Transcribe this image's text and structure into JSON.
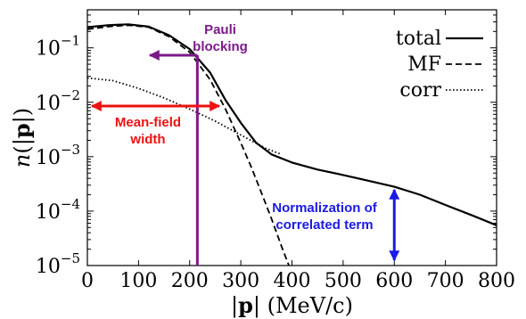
{
  "chart_data": {
    "type": "line",
    "xlabel": "|p| (MeV/c)",
    "ylabel": "n(|p|)",
    "xlim": [
      0,
      800
    ],
    "ylim": [
      1e-05,
      0.5
    ],
    "yscale": "log",
    "x_ticks": [
      "0",
      "100",
      "200",
      "300",
      "400",
      "500",
      "600",
      "700",
      "800"
    ],
    "y_ticks": [
      {
        "base": "10",
        "exp": "−5"
      },
      {
        "base": "10",
        "exp": "−4"
      },
      {
        "base": "10",
        "exp": "−3"
      },
      {
        "base": "10",
        "exp": "−2"
      },
      {
        "base": "10",
        "exp": "−1"
      }
    ],
    "legend": {
      "position": "top-right",
      "entries": [
        {
          "label": "total",
          "style": "solid"
        },
        {
          "label": "MF",
          "style": "dashed"
        },
        {
          "label": "corr",
          "style": "dotted"
        }
      ]
    },
    "series": [
      {
        "name": "total",
        "style": "solid",
        "points": [
          [
            0,
            0.24
          ],
          [
            40,
            0.26
          ],
          [
            80,
            0.27
          ],
          [
            120,
            0.245
          ],
          [
            160,
            0.17
          ],
          [
            200,
            0.095
          ],
          [
            240,
            0.035
          ],
          [
            270,
            0.011
          ],
          [
            300,
            0.0042
          ],
          [
            330,
            0.0018
          ],
          [
            360,
            0.0011
          ],
          [
            400,
            0.00078
          ],
          [
            450,
            0.00058
          ],
          [
            500,
            0.00046
          ],
          [
            550,
            0.00036
          ],
          [
            600,
            0.00028
          ],
          [
            650,
            0.0002
          ],
          [
            700,
            0.00013
          ],
          [
            750,
            8.5e-05
          ],
          [
            800,
            5.5e-05
          ]
        ]
      },
      {
        "name": "MF",
        "style": "dashed",
        "points": [
          [
            0,
            0.22
          ],
          [
            40,
            0.245
          ],
          [
            80,
            0.26
          ],
          [
            120,
            0.24
          ],
          [
            160,
            0.16
          ],
          [
            200,
            0.083
          ],
          [
            240,
            0.026
          ],
          [
            270,
            0.0075
          ],
          [
            300,
            0.0018
          ],
          [
            320,
            0.00066
          ],
          [
            340,
            0.00022
          ],
          [
            360,
            7.2e-05
          ],
          [
            380,
            2.2e-05
          ],
          [
            395,
            9.5e-06
          ]
        ]
      },
      {
        "name": "corr",
        "style": "dotted",
        "points": [
          [
            0,
            0.028
          ],
          [
            50,
            0.025
          ],
          [
            100,
            0.018
          ],
          [
            150,
            0.012
          ],
          [
            200,
            0.0075
          ],
          [
            250,
            0.0045
          ],
          [
            300,
            0.0025
          ],
          [
            350,
            0.0014
          ],
          [
            380,
            0.0011
          ]
        ]
      }
    ],
    "annotations": [
      {
        "text": [
          "Pauli",
          "blocking"
        ],
        "color": "#7a1a88"
      },
      {
        "text": [
          "Mean-field",
          "width"
        ],
        "color": "#ee1111"
      },
      {
        "text": [
          "Normalization of",
          "correlated term"
        ],
        "color": "#1a1ae6"
      }
    ]
  }
}
